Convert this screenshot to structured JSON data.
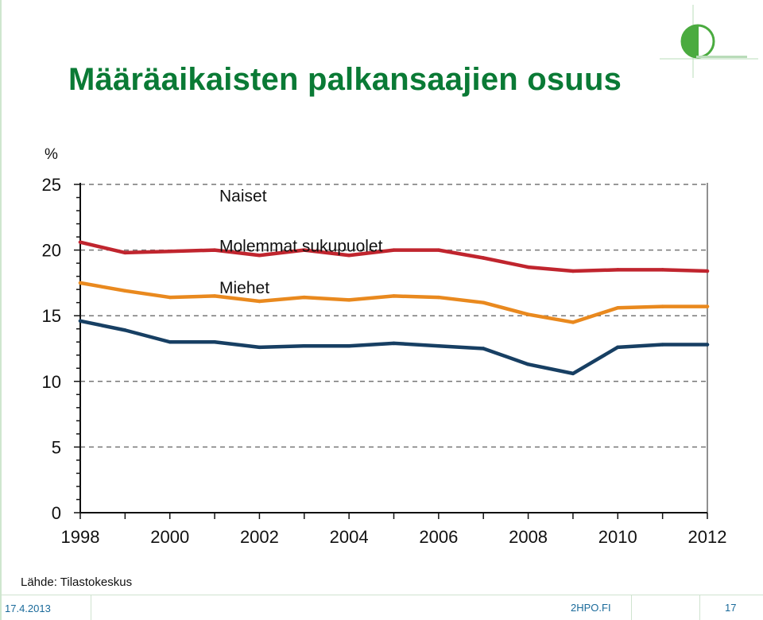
{
  "slide": {
    "title": "Määräaikaisten palkansaajien osuus",
    "source": "Lähde: Tilastokeskus",
    "footer": {
      "date": "17.4.2013",
      "brand": "2HPO.FI",
      "page": "17"
    }
  },
  "chart_data": {
    "type": "line",
    "title": "",
    "xlabel": "",
    "ylabel": "%",
    "x": [
      1998,
      1999,
      2000,
      2001,
      2002,
      2003,
      2004,
      2005,
      2006,
      2007,
      2008,
      2009,
      2010,
      2011,
      2012
    ],
    "xticks": [
      "1998",
      "2000",
      "2002",
      "2004",
      "2006",
      "2008",
      "2010",
      "2012"
    ],
    "yticks": [
      "0",
      "5",
      "10",
      "15",
      "20",
      "25"
    ],
    "xlim": [
      1998,
      2012
    ],
    "ylim": [
      0,
      25
    ],
    "grid": "horizontal dashed",
    "series": [
      {
        "name": "Naiset",
        "color": "#c0252e",
        "values": [
          20.6,
          19.8,
          19.9,
          20.0,
          19.6,
          20.0,
          19.6,
          20.0,
          20.0,
          19.4,
          18.7,
          18.4,
          18.5,
          18.5,
          18.4
        ]
      },
      {
        "name": "Molemmat sukupuolet",
        "color": "#e9891e",
        "values": [
          17.5,
          16.9,
          16.4,
          16.5,
          16.1,
          16.4,
          16.2,
          16.5,
          16.4,
          16.0,
          15.1,
          14.5,
          15.6,
          15.7,
          15.7
        ]
      },
      {
        "name": "Miehet",
        "color": "#173f63",
        "values": [
          14.6,
          13.9,
          13.0,
          13.0,
          12.6,
          12.7,
          12.7,
          12.9,
          12.7,
          12.5,
          11.3,
          10.6,
          12.6,
          12.8,
          12.8
        ]
      }
    ]
  },
  "colors": {
    "title": "#0a7a35",
    "footer_text": "#1a6a9a",
    "grid": "#777777"
  },
  "icons": {
    "logo": "2hpo-logo-icon"
  }
}
